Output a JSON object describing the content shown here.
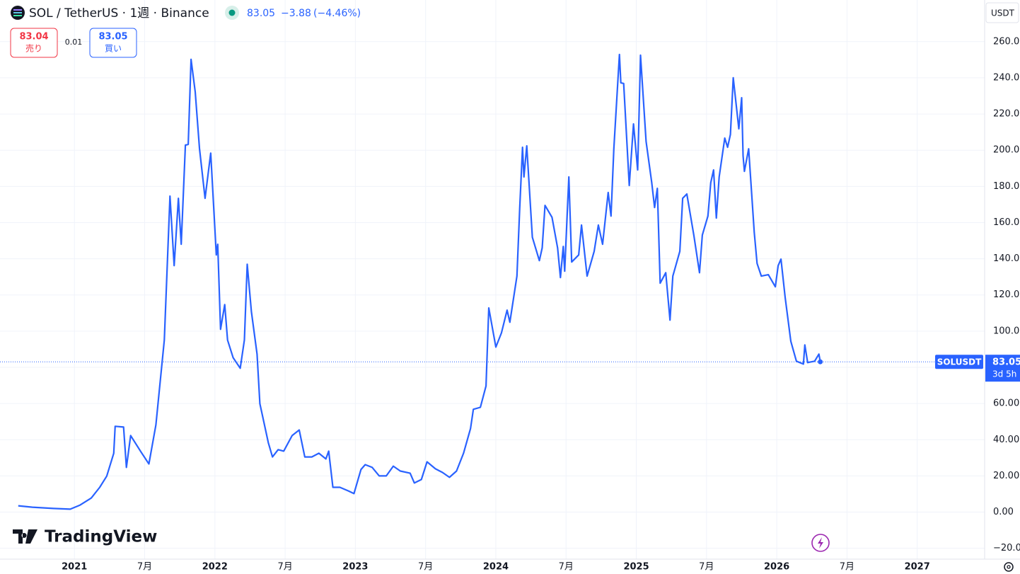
{
  "chart_data": {
    "type": "line",
    "title": "SOL / TetherUS · 1週 · Binance",
    "quote": {
      "last": 83.05,
      "change": {
        "value": -3.88,
        "label": "−3.88"
      },
      "change_pct": {
        "value": -4.46,
        "label": "(−4.46%)"
      }
    },
    "trade": {
      "sell_price": 83.04,
      "sell_label": "売り",
      "spread": 0.01,
      "buy_price": 83.05,
      "buy_label": "買い"
    },
    "currency": "USDT",
    "brand": "TradingView",
    "last_price": {
      "value": 83.05,
      "countdown": "3d 5h"
    },
    "grid": true,
    "xlim": [
      2020.47,
      2027.48
    ],
    "ylim": [
      -26,
      283
    ],
    "xticks": [
      2021,
      {
        "value": 2021.5,
        "label": "7月"
      },
      2022,
      {
        "value": 2022.5,
        "label": "7月"
      },
      2023,
      {
        "value": 2023.5,
        "label": "7月"
      },
      2024,
      {
        "value": 2024.5,
        "label": "7月"
      },
      2025,
      {
        "value": 2025.5,
        "label": "7月"
      },
      2026,
      {
        "value": 2026.5,
        "label": "7月"
      },
      2027
    ],
    "yticks": [
      {
        "value": 260,
        "label": "260.00"
      },
      {
        "value": 240,
        "label": "240.00"
      },
      {
        "value": 220,
        "label": "220.00"
      },
      {
        "value": 200,
        "label": "200.00"
      },
      {
        "value": 180,
        "label": "180.00"
      },
      {
        "value": 160,
        "label": "160.00"
      },
      {
        "value": 140,
        "label": "140.00"
      },
      {
        "value": 120,
        "label": "120.00"
      },
      {
        "value": 100,
        "label": "100.00"
      },
      {
        "value": 80,
        "label": "80.00"
      },
      {
        "value": 60,
        "label": "60.00"
      },
      {
        "value": 40,
        "label": "40.00"
      },
      {
        "value": 20,
        "label": "20.00"
      },
      {
        "value": 0,
        "label": "0.00"
      },
      {
        "value": -20,
        "label": "−20.00"
      }
    ],
    "series": [
      {
        "name": "SOLUSDT",
        "color": "#2962ff",
        "x": [
          2020.6,
          2020.7,
          2020.85,
          2020.97,
          2021.04,
          2021.12,
          2021.18,
          2021.23,
          2021.28,
          2021.29,
          2021.35,
          2021.37,
          2021.4,
          2021.47,
          2021.53,
          2021.58,
          2021.64,
          2021.68,
          2021.71,
          2021.74,
          2021.76,
          2021.79,
          2021.81,
          2021.83,
          2021.86,
          2021.89,
          2021.93,
          2021.97,
          2022.01,
          2022.02,
          2022.04,
          2022.07,
          2022.09,
          2022.13,
          2022.18,
          2022.21,
          2022.23,
          2022.26,
          2022.3,
          2022.32,
          2022.38,
          2022.41,
          2022.45,
          2022.49,
          2022.55,
          2022.6,
          2022.64,
          2022.69,
          2022.74,
          2022.79,
          2022.81,
          2022.84,
          2022.89,
          2022.95,
          2022.99,
          2023.04,
          2023.07,
          2023.12,
          2023.17,
          2023.22,
          2023.27,
          2023.32,
          2023.39,
          2023.42,
          2023.47,
          2023.51,
          2023.57,
          2023.62,
          2023.67,
          2023.72,
          2023.77,
          2023.82,
          2023.84,
          2023.89,
          2023.93,
          2023.95,
          2024.0,
          2024.04,
          2024.08,
          2024.1,
          2024.15,
          2024.17,
          2024.19,
          2024.2,
          2024.22,
          2024.26,
          2024.31,
          2024.33,
          2024.35,
          2024.4,
          2024.44,
          2024.46,
          2024.48,
          2024.49,
          2024.52,
          2024.54,
          2024.59,
          2024.61,
          2024.65,
          2024.7,
          2024.73,
          2024.76,
          2024.8,
          2024.82,
          2024.84,
          2024.88,
          2024.89,
          2024.91,
          2024.95,
          2024.98,
          2025.01,
          2025.03,
          2025.07,
          2025.11,
          2025.13,
          2025.15,
          2025.17,
          2025.21,
          2025.24,
          2025.26,
          2025.31,
          2025.33,
          2025.36,
          2025.41,
          2025.45,
          2025.47,
          2025.51,
          2025.53,
          2025.55,
          2025.57,
          2025.59,
          2025.63,
          2025.65,
          2025.67,
          2025.69,
          2025.73,
          2025.75,
          2025.76,
          2025.77,
          2025.8,
          2025.84,
          2025.86,
          2025.89,
          2025.94,
          2025.99,
          2026.01,
          2026.03,
          2026.06,
          2026.1,
          2026.14,
          2026.19,
          2026.2,
          2026.22,
          2026.27,
          2026.3,
          2026.31
        ],
        "values": [
          3.5,
          2.7,
          2.0,
          1.6,
          3.9,
          7.8,
          13.7,
          19.9,
          32.5,
          47.4,
          47.0,
          24.7,
          42.3,
          33.7,
          26.6,
          48.2,
          95.1,
          174.6,
          136.2,
          173.4,
          148.0,
          202.8,
          203.2,
          250.2,
          232.2,
          201.0,
          173.4,
          198.4,
          142.1,
          148.0,
          101.0,
          114.7,
          95.1,
          85.3,
          79.5,
          95.1,
          137.0,
          110.8,
          87.3,
          59.9,
          38.4,
          30.5,
          34.5,
          33.7,
          42.3,
          45.4,
          30.5,
          30.5,
          32.5,
          29.4,
          33.7,
          13.7,
          13.7,
          11.7,
          10.2,
          23.5,
          26.2,
          24.7,
          20.0,
          20.0,
          25.4,
          22.7,
          21.5,
          16.1,
          18.0,
          27.8,
          23.9,
          21.9,
          19.2,
          22.7,
          32.5,
          46.2,
          56.8,
          57.9,
          69.7,
          112.8,
          91.2,
          99.0,
          111.6,
          104.9,
          130.4,
          167.6,
          201.6,
          185.2,
          202.4,
          151.9,
          139.0,
          146.0,
          169.5,
          162.9,
          146.0,
          129.6,
          146.8,
          133.1,
          185.2,
          138.2,
          142.1,
          158.6,
          130.4,
          144.1,
          158.6,
          148.0,
          176.6,
          163.6,
          200.8,
          252.9,
          237.2,
          236.9,
          180.5,
          214.5,
          189.1,
          252.5,
          204.8,
          182.0,
          168.3,
          178.9,
          126.5,
          132.3,
          106.1,
          130.4,
          144.1,
          173.4,
          175.8,
          152.7,
          132.3,
          153.1,
          163.6,
          182.0,
          189.1,
          162.5,
          185.2,
          206.7,
          201.6,
          208.7,
          240.0,
          211.8,
          229.0,
          196.9,
          188.3,
          200.8,
          154.6,
          137.4,
          130.4,
          131.2,
          124.5,
          136.2,
          139.8,
          118.6,
          94.4,
          83.4,
          81.8,
          92.4,
          82.6,
          83.4,
          87.3,
          83.05
        ]
      }
    ]
  }
}
